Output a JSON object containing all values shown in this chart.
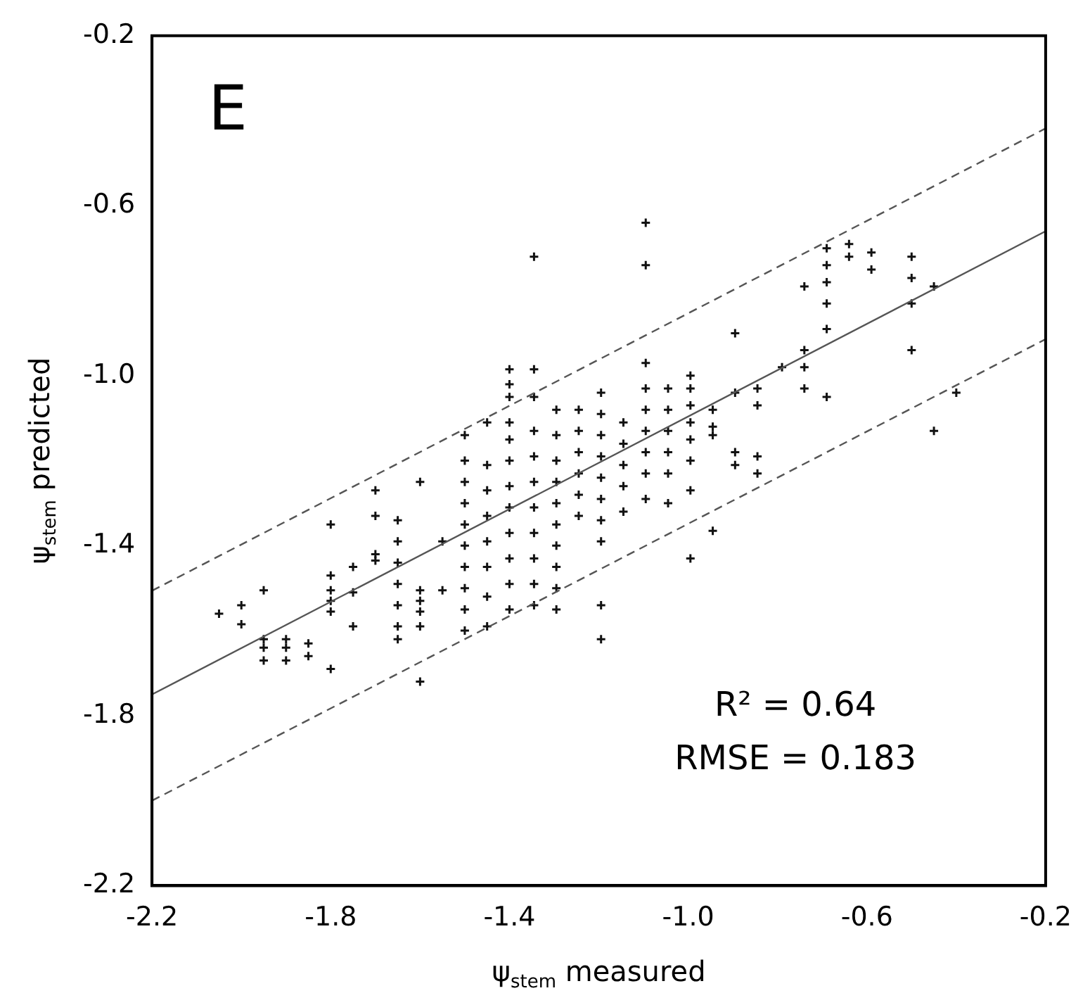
{
  "chart_data": {
    "type": "scatter",
    "xlabel": "ψ$_{stem}$ measured",
    "ylabel": "ψ$_{stem}$ predicted",
    "annotations": [
      "E",
      "R² = 0.64",
      "RMSE = 0.183"
    ],
    "xlim": [
      -2.2,
      -0.2
    ],
    "ylim": [
      -2.2,
      -0.2
    ],
    "xticks": [
      -2.2,
      -1.8,
      -1.4,
      {
        "value": -1,
        "label": "-1.0"
      },
      -0.6,
      -0.2
    ],
    "yticks": [
      -2.2,
      -1.8,
      -1.4,
      {
        "value": -1,
        "label": "-1.0"
      },
      -0.6,
      -0.2
    ],
    "grid": false,
    "legend": false,
    "series": [
      {
        "type": "scatter",
        "color": "#111111",
        "marker": "cross",
        "x": [
          -2.05,
          -2.0,
          -2.0,
          -1.95,
          -1.95,
          -1.95,
          -1.95,
          -1.9,
          -1.9,
          -1.9,
          -1.85,
          -1.85,
          -1.8,
          -1.8,
          -1.8,
          -1.8,
          -1.8,
          -1.8,
          -1.75,
          -1.75,
          -1.75,
          -1.7,
          -1.7,
          -1.7,
          -1.7,
          -1.65,
          -1.65,
          -1.65,
          -1.65,
          -1.65,
          -1.65,
          -1.65,
          -1.6,
          -1.6,
          -1.6,
          -1.6,
          -1.6,
          -1.6,
          -1.55,
          -1.55,
          -1.5,
          -1.5,
          -1.5,
          -1.5,
          -1.5,
          -1.5,
          -1.5,
          -1.5,
          -1.5,
          -1.5,
          -1.45,
          -1.45,
          -1.45,
          -1.45,
          -1.45,
          -1.45,
          -1.45,
          -1.45,
          -1.4,
          -1.4,
          -1.4,
          -1.4,
          -1.4,
          -1.4,
          -1.4,
          -1.4,
          -1.4,
          -1.4,
          -1.4,
          -1.4,
          -1.345,
          -1.345,
          -1.345,
          -1.345,
          -1.345,
          -1.345,
          -1.345,
          -1.345,
          -1.345,
          -1.345,
          -1.345,
          -1.295,
          -1.295,
          -1.295,
          -1.295,
          -1.295,
          -1.295,
          -1.295,
          -1.295,
          -1.295,
          -1.295,
          -1.245,
          -1.245,
          -1.245,
          -1.245,
          -1.245,
          -1.245,
          -1.195,
          -1.195,
          -1.195,
          -1.195,
          -1.195,
          -1.195,
          -1.195,
          -1.195,
          -1.195,
          -1.195,
          -1.145,
          -1.145,
          -1.145,
          -1.145,
          -1.145,
          -1.095,
          -1.095,
          -1.095,
          -1.095,
          -1.095,
          -1.095,
          -1.095,
          -1.095,
          -1.095,
          -1.045,
          -1.045,
          -1.045,
          -1.045,
          -1.045,
          -1.045,
          -0.995,
          -0.995,
          -0.995,
          -0.995,
          -0.995,
          -0.995,
          -0.995,
          -0.995,
          -0.945,
          -0.945,
          -0.945,
          -0.945,
          -0.895,
          -0.895,
          -0.895,
          -0.895,
          -0.845,
          -0.845,
          -0.845,
          -0.845,
          -0.79,
          -0.74,
          -0.74,
          -0.74,
          -0.74,
          -0.69,
          -0.69,
          -0.69,
          -0.69,
          -0.69,
          -0.69,
          -0.64,
          -0.64,
          -0.59,
          -0.59,
          -0.5,
          -0.5,
          -0.5,
          -0.5,
          -0.45,
          -0.45,
          -0.4
        ],
        "values": [
          -1.56,
          -1.54,
          -1.585,
          -1.505,
          -1.62,
          -1.64,
          -1.67,
          -1.62,
          -1.64,
          -1.67,
          -1.63,
          -1.66,
          -1.35,
          -1.47,
          -1.505,
          -1.53,
          -1.555,
          -1.69,
          -1.45,
          -1.51,
          -1.59,
          -1.27,
          -1.33,
          -1.42,
          -1.435,
          -1.34,
          -1.39,
          -1.44,
          -1.49,
          -1.54,
          -1.59,
          -1.62,
          -1.25,
          -1.505,
          -1.53,
          -1.555,
          -1.59,
          -1.72,
          -1.39,
          -1.505,
          -1.14,
          -1.2,
          -1.25,
          -1.3,
          -1.35,
          -1.4,
          -1.45,
          -1.5,
          -1.55,
          -1.6,
          -1.11,
          -1.21,
          -1.27,
          -1.33,
          -1.39,
          -1.45,
          -1.52,
          -1.59,
          -0.985,
          -1.02,
          -1.05,
          -1.11,
          -1.15,
          -1.2,
          -1.26,
          -1.31,
          -1.37,
          -1.43,
          -1.49,
          -1.55,
          -0.72,
          -0.985,
          -1.05,
          -1.13,
          -1.19,
          -1.25,
          -1.31,
          -1.37,
          -1.43,
          -1.49,
          -1.54,
          -1.08,
          -1.14,
          -1.2,
          -1.25,
          -1.3,
          -1.35,
          -1.4,
          -1.45,
          -1.5,
          -1.55,
          -1.08,
          -1.13,
          -1.18,
          -1.23,
          -1.28,
          -1.33,
          -1.04,
          -1.09,
          -1.14,
          -1.19,
          -1.24,
          -1.29,
          -1.34,
          -1.39,
          -1.54,
          -1.62,
          -1.11,
          -1.16,
          -1.21,
          -1.26,
          -1.32,
          -0.64,
          -0.74,
          -0.97,
          -1.03,
          -1.08,
          -1.13,
          -1.18,
          -1.23,
          -1.29,
          -1.03,
          -1.08,
          -1.13,
          -1.18,
          -1.23,
          -1.3,
          -1.0,
          -1.03,
          -1.07,
          -1.11,
          -1.15,
          -1.2,
          -1.27,
          -1.43,
          -1.08,
          -1.12,
          -1.14,
          -1.365,
          -0.9,
          -1.04,
          -1.18,
          -1.21,
          -1.03,
          -1.07,
          -1.19,
          -1.23,
          -0.98,
          -0.79,
          -0.94,
          -0.98,
          -1.03,
          -0.7,
          -0.74,
          -0.78,
          -0.83,
          -0.89,
          -1.05,
          -0.69,
          -0.72,
          -0.71,
          -0.75,
          -0.72,
          -0.77,
          -0.83,
          -0.94,
          -0.79,
          -1.13,
          -1.04
        ]
      },
      {
        "type": "line",
        "color": "#555555",
        "line_style": "dashed",
        "x": [
          -2.2,
          -0.2
        ],
        "values": [
          -1.506,
          -0.418
        ]
      },
      {
        "type": "line",
        "color": "#555555",
        "line_style": "solid",
        "x": [
          -2.2,
          -0.2
        ],
        "values": [
          -1.75,
          -0.66
        ]
      },
      {
        "type": "line",
        "color": "#555555",
        "line_style": "dashed",
        "x": [
          -2.2,
          -0.2
        ],
        "values": [
          -2.0,
          -0.914
        ]
      }
    ]
  }
}
